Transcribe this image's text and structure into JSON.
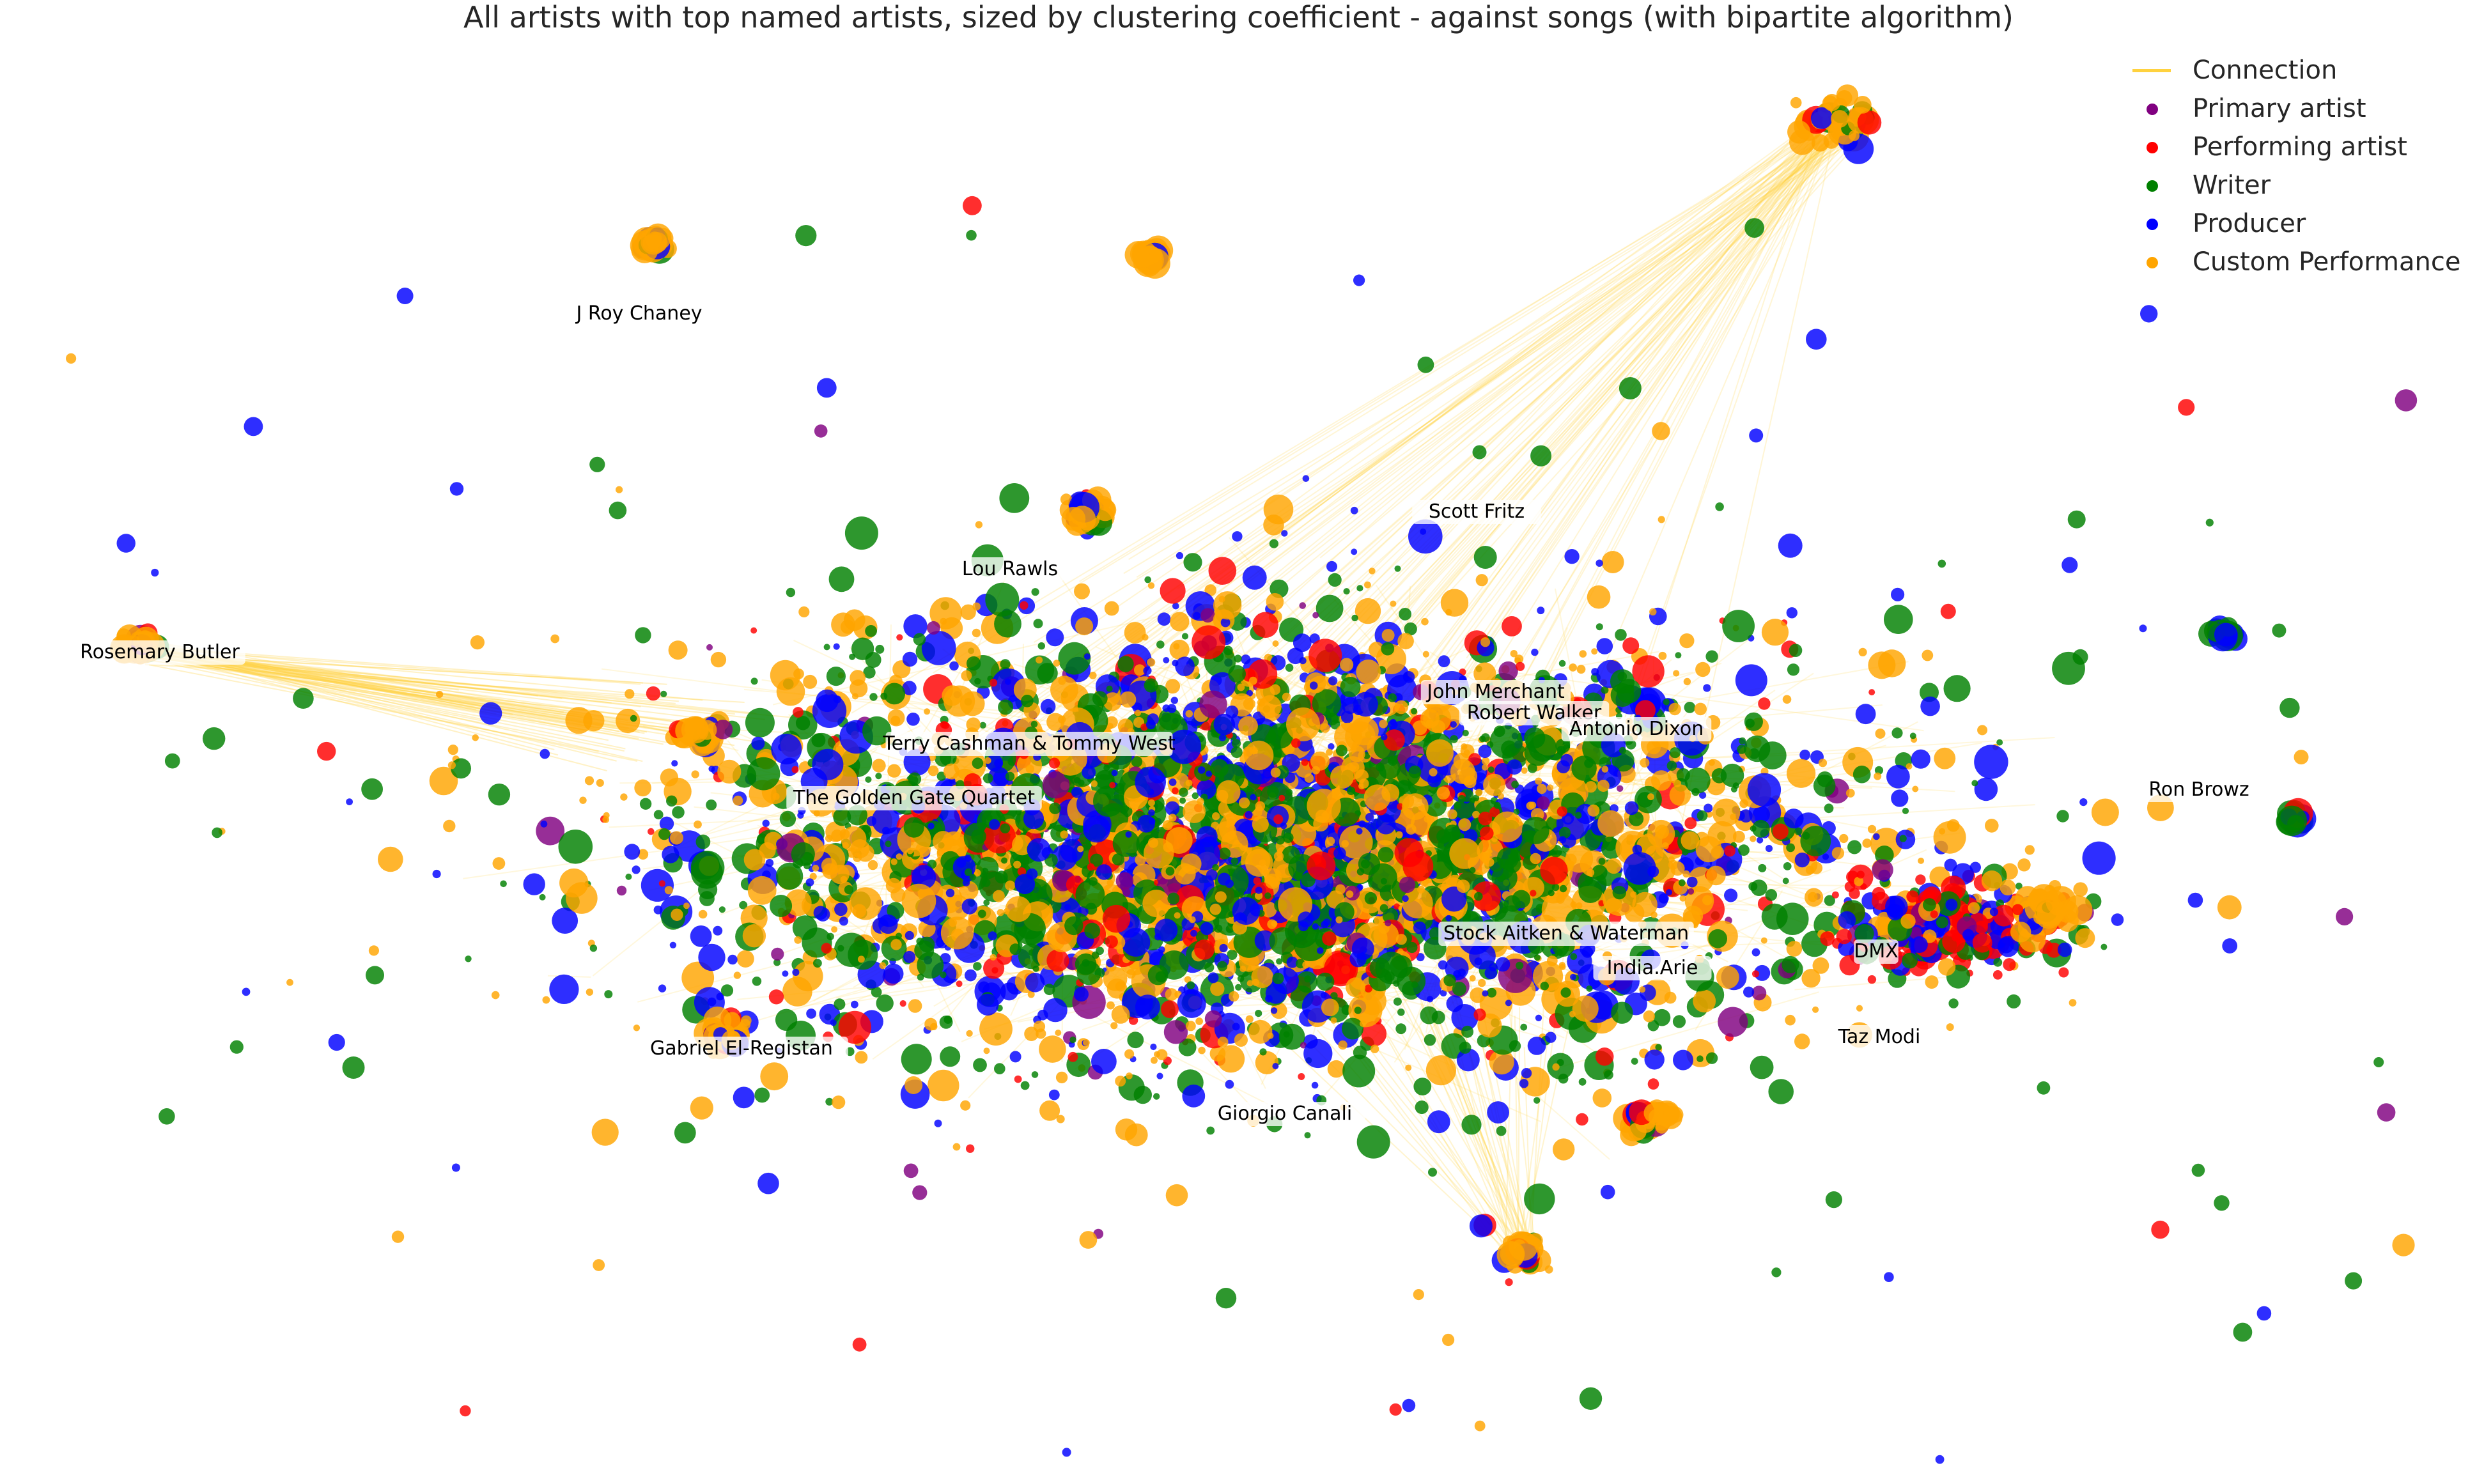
{
  "title": "All artists with top named artists, sized by clustering coefficient - against songs (with bipartite algorithm)",
  "legend": [
    {
      "label": "Connection",
      "kind": "line",
      "color": "#FFD23F"
    },
    {
      "label": "Primary artist",
      "kind": "dot",
      "color": "#800080"
    },
    {
      "label": "Performing artist",
      "kind": "dot",
      "color": "#FF0000"
    },
    {
      "label": "Writer",
      "kind": "dot",
      "color": "#008000"
    },
    {
      "label": "Producer",
      "kind": "dot",
      "color": "#0000FF"
    },
    {
      "label": "Custom Performance",
      "kind": "dot",
      "color": "#FFA500"
    }
  ],
  "artist_labels": [
    "J Roy Chaney",
    "Scott Fritz",
    "Lou Rawls",
    "Rosemary Butler",
    "John Merchant",
    "Robert Walker",
    "Antonio Dixon",
    "Terry Cashman & Tommy West",
    "The Golden Gate Quartet",
    "Ron Browz",
    "Stock Aitken & Waterman",
    "India.Arie",
    "DMX",
    "Taz Modi",
    "Gabriel El-Registan",
    "Giorgio Canali"
  ]
}
